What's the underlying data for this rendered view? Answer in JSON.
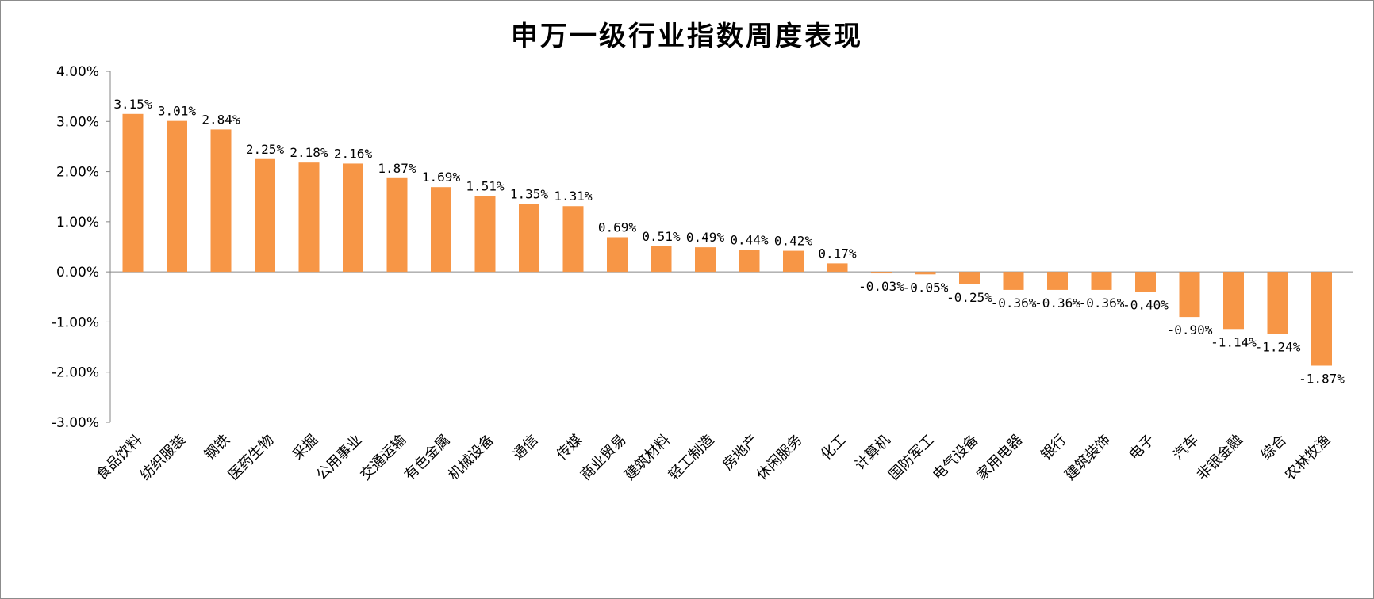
{
  "chart_data": {
    "type": "bar",
    "title": "申万一级行业指数周度表现",
    "xlabel": "",
    "ylabel": "",
    "ylim": [
      -3,
      4
    ],
    "y_ticks": [
      "4.00%",
      "3.00%",
      "2.00%",
      "1.00%",
      "0.00%",
      "-1.00%",
      "-2.00%",
      "-3.00%"
    ],
    "grid": false,
    "legend": "none",
    "bar_color": "#F79646",
    "categories": [
      "食品饮料",
      "纺织服装",
      "钢铁",
      "医药生物",
      "采掘",
      "公用事业",
      "交通运输",
      "有色金属",
      "机械设备",
      "通信",
      "传媒",
      "商业贸易",
      "建筑材料",
      "轻工制造",
      "房地产",
      "休闲服务",
      "化工",
      "计算机",
      "国防军工",
      "电气设备",
      "家用电器",
      "银行",
      "建筑装饰",
      "电子",
      "汽车",
      "非银金融",
      "综合",
      "农林牧渔"
    ],
    "values": [
      3.15,
      3.01,
      2.84,
      2.25,
      2.18,
      2.16,
      1.87,
      1.69,
      1.51,
      1.35,
      1.31,
      0.69,
      0.51,
      0.49,
      0.44,
      0.42,
      0.17,
      -0.03,
      -0.05,
      -0.25,
      -0.36,
      -0.36,
      -0.36,
      -0.4,
      -0.9,
      -1.14,
      -1.24,
      -1.87
    ],
    "data_labels": [
      "3.15%",
      "3.01%",
      "2.84%",
      "2.25%",
      "2.18%",
      "2.16%",
      "1.87%",
      "1.69%",
      "1.51%",
      "1.35%",
      "1.31%",
      "0.69%",
      "0.51%",
      "0.49%",
      "0.44%",
      "0.42%",
      "0.17%",
      "-0.03%",
      "-0.05%",
      "-0.25%",
      "-0.36%",
      "-0.36%",
      "-0.36%",
      "-0.40%",
      "-0.90%",
      "-1.14%",
      "-1.24%",
      "-1.87%"
    ]
  }
}
